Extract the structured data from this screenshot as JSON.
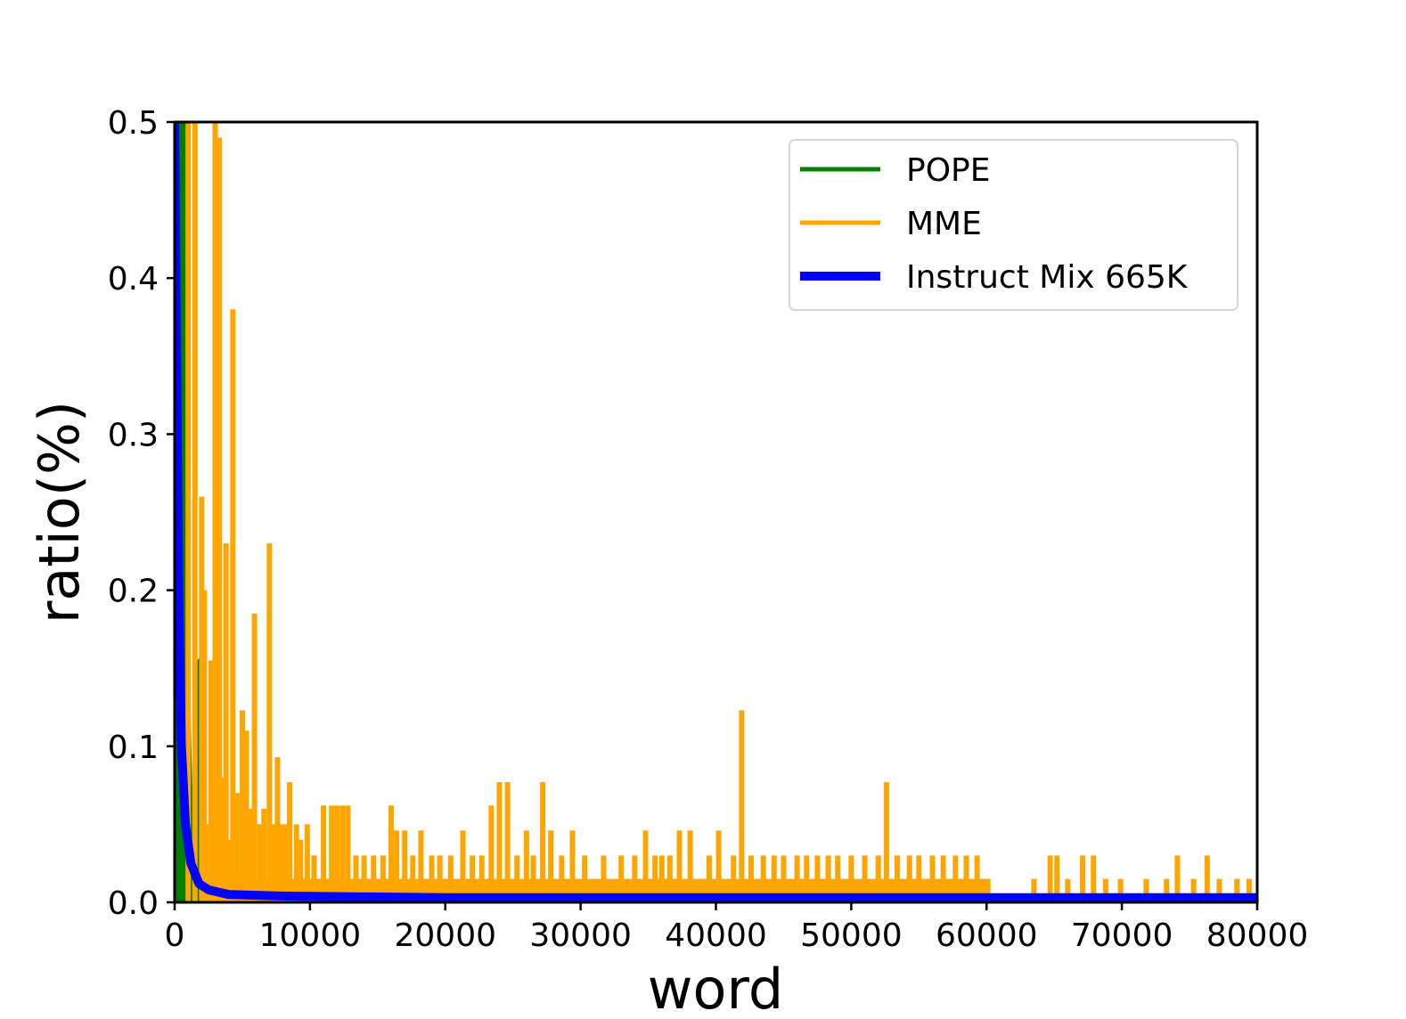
{
  "chart_data": {
    "type": "line",
    "title": "",
    "xlabel": "word",
    "ylabel": "ratio(%)",
    "xlim": [
      0,
      80000
    ],
    "ylim": [
      0,
      0.5
    ],
    "xticks": [
      "0",
      "10000",
      "20000",
      "30000",
      "40000",
      "50000",
      "60000",
      "70000",
      "80000"
    ],
    "yticks": [
      "0.0",
      "0.1",
      "0.2",
      "0.3",
      "0.4",
      "0.5"
    ],
    "grid": false,
    "legend_position": "top-right",
    "series": [
      {
        "name": "POPE",
        "color": "#008000",
        "style": "vertical spikes (filled)",
        "x": [
          0,
          100,
          200,
          400,
          600,
          800,
          1000,
          1200,
          1400,
          1600,
          1800,
          2000,
          2200,
          2400
        ],
        "values": [
          0.5,
          0.5,
          0.5,
          0.5,
          0.5,
          0.5,
          0.155,
          0.075,
          0.04,
          0.075,
          0.155,
          0.158,
          0.04,
          0.0
        ]
      },
      {
        "name": "MME",
        "color": "#FFA500",
        "style": "vertical spikes",
        "x": [
          1000,
          1500,
          2000,
          2200,
          2400,
          2700,
          3000,
          3300,
          3500,
          3800,
          4000,
          4300,
          4600,
          5000,
          5300,
          5600,
          5900,
          6300,
          6600,
          7000,
          7300,
          7600,
          7900,
          8200,
          8500,
          9000,
          9300,
          9800,
          10300,
          11000,
          11600,
          12000,
          12400,
          12800,
          13400,
          14000,
          14700,
          15400,
          16000,
          16400,
          17000,
          17600,
          18200,
          19000,
          19600,
          20400,
          21300,
          22000,
          22700,
          23400,
          24000,
          24600,
          25300,
          26000,
          26500,
          27200,
          27800,
          28600,
          29400,
          30300,
          31700,
          33000,
          34000,
          34800,
          35500,
          36000,
          36600,
          37300,
          38100,
          39500,
          40200,
          41300,
          41900,
          42600,
          43500,
          44300,
          45000,
          46000,
          46700,
          47500,
          48300,
          49000,
          50000,
          51000,
          52000,
          52600,
          53400,
          54300,
          55000,
          56000,
          56800,
          57700,
          58500,
          59300,
          60100,
          63500,
          64700,
          65200,
          66000,
          67100,
          67900,
          68800,
          69900,
          71800,
          73300,
          74100,
          75300,
          76300,
          77200,
          78500,
          79400
        ],
        "values": [
          0.5,
          0.5,
          0.26,
          0.2,
          0.05,
          0.155,
          0.5,
          0.49,
          0.08,
          0.23,
          0.04,
          0.38,
          0.07,
          0.123,
          0.11,
          0.06,
          0.185,
          0.05,
          0.06,
          0.23,
          0.05,
          0.093,
          0.05,
          0.05,
          0.077,
          0.05,
          0.04,
          0.05,
          0.03,
          0.062,
          0.062,
          0.062,
          0.062,
          0.062,
          0.03,
          0.03,
          0.03,
          0.03,
          0.062,
          0.046,
          0.046,
          0.03,
          0.046,
          0.03,
          0.03,
          0.03,
          0.046,
          0.03,
          0.03,
          0.062,
          0.077,
          0.077,
          0.03,
          0.046,
          0.03,
          0.077,
          0.046,
          0.03,
          0.046,
          0.03,
          0.03,
          0.03,
          0.03,
          0.046,
          0.03,
          0.03,
          0.03,
          0.046,
          0.046,
          0.03,
          0.046,
          0.03,
          0.123,
          0.03,
          0.03,
          0.03,
          0.03,
          0.03,
          0.03,
          0.03,
          0.03,
          0.03,
          0.03,
          0.03,
          0.03,
          0.077,
          0.03,
          0.03,
          0.03,
          0.03,
          0.03,
          0.03,
          0.03,
          0.03,
          0.015,
          0.015,
          0.03,
          0.03,
          0.015,
          0.03,
          0.03,
          0.015,
          0.015,
          0.015,
          0.015,
          0.03,
          0.015,
          0.03,
          0.015,
          0.015,
          0.015
        ],
        "baseline": 0.015,
        "baseline_range": [
          2000,
          60200
        ]
      },
      {
        "name": "Instruct Mix 665K",
        "color": "#0000FF",
        "style": "thick decaying line",
        "x": [
          0,
          300,
          500,
          800,
          1200,
          1800,
          2500,
          4000,
          8000,
          20000,
          80000
        ],
        "values": [
          0.5,
          0.2,
          0.1,
          0.05,
          0.025,
          0.012,
          0.008,
          0.005,
          0.004,
          0.003,
          0.003
        ]
      }
    ]
  }
}
